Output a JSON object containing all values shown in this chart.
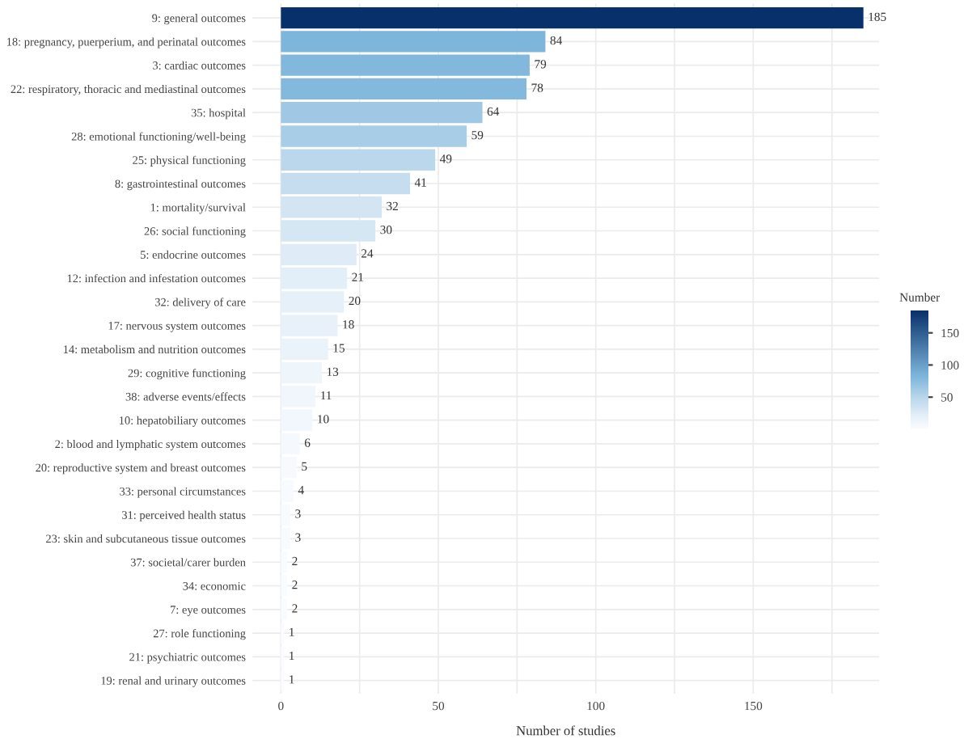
{
  "chart_data": {
    "type": "bar",
    "orientation": "horizontal",
    "xlabel": "Number of studies",
    "clabel": "Number",
    "categories": [
      "9: general outcomes",
      "18: pregnancy, puerperium, and perinatal outcomes",
      "3: cardiac outcomes",
      "22: respiratory, thoracic and mediastinal outcomes",
      "35: hospital",
      "28: emotional functioning/well-being",
      "25: physical functioning",
      "8: gastrointestinal outcomes",
      "1: mortality/survival",
      "26: social functioning",
      "5: endocrine outcomes",
      "12: infection and infestation outcomes",
      "32: delivery of care",
      "17: nervous system outcomes",
      "14: metabolism and nutrition outcomes",
      "29: cognitive functioning",
      "38: adverse events/effects",
      "10: hepatobiliary outcomes",
      "2: blood and lymphatic system outcomes",
      "20: reproductive system and breast outcomes",
      "33: personal circumstances",
      "31: perceived health status",
      "23: skin and subcutaneous tissue outcomes",
      "37: societal/carer burden",
      "34: economic",
      "7: eye outcomes",
      "27: role functioning",
      "21: psychiatric outcomes",
      "19: renal and urinary outcomes"
    ],
    "values": [
      185,
      84,
      79,
      78,
      64,
      59,
      49,
      41,
      32,
      30,
      24,
      21,
      20,
      18,
      15,
      13,
      11,
      10,
      6,
      5,
      4,
      3,
      3,
      2,
      2,
      2,
      1,
      1,
      1
    ],
    "colors": [
      "#08306b",
      "#7db5db",
      "#82b8dc",
      "#83b9dd",
      "#a0c8e4",
      "#a8cde6",
      "#bad7ec",
      "#c6ddef",
      "#d3e5f3",
      "#d6e7f4",
      "#dfecf7",
      "#e3eff8",
      "#e5f0f8",
      "#e8f1f9",
      "#ebf3fa",
      "#eef5fb",
      "#f0f6fb",
      "#f1f7fc",
      "#f5f9fd",
      "#f6fafd",
      "#f7fafe",
      "#f8fbfe",
      "#f8fbfe",
      "#f9fcfe",
      "#f9fcfe",
      "#f9fcfe",
      "#fafcff",
      "#fafcff",
      "#fafcff"
    ],
    "xlim": [
      -9,
      190
    ],
    "xticks": [
      0,
      {
        "value": 25,
        "label": null
      },
      50,
      {
        "value": 75,
        "label": null
      },
      100,
      {
        "value": 125,
        "label": null
      },
      150,
      {
        "value": 175,
        "label": null
      }
    ],
    "clim": [
      1,
      185
    ],
    "cticks": [
      50,
      100,
      150
    ],
    "data_labels": true,
    "grid": true
  }
}
